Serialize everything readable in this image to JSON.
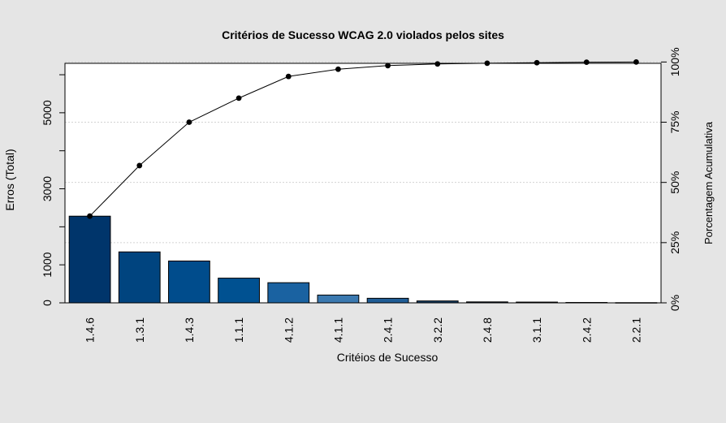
{
  "chart_data": {
    "type": "bar",
    "title": "Critérios de Sucesso WCAG 2.0 violados pelos sites",
    "xlabel": "Critéios de Sucesso",
    "ylabel": "Erros (Total)",
    "y2label": "Porcentagem Acumulativa",
    "categories": [
      "1.4.6",
      "1.3.1",
      "1.4.3",
      "1.1.1",
      "4.1.2",
      "4.1.1",
      "2.4.1",
      "3.2.2",
      "2.4.8",
      "3.1.1",
      "2.4.2",
      "2.2.1"
    ],
    "values": [
      2280,
      1340,
      1100,
      650,
      530,
      205,
      120,
      50,
      25,
      20,
      10,
      5
    ],
    "bar_colors": [
      "#00356b",
      "#00447f",
      "#004c8c",
      "#005191",
      "#1a62a1",
      "#3b79b0",
      "#1f5d96",
      "#163f66",
      "#10253d",
      "#0d1c2c",
      "#0b1623",
      "#0a0f17"
    ],
    "cumulative_percent": [
      36,
      57,
      75,
      85,
      94,
      97,
      98.5,
      99.2,
      99.5,
      99.7,
      99.9,
      100
    ],
    "ylim": [
      0,
      6300
    ],
    "y_ticks": [
      0,
      1000,
      3000,
      5000
    ],
    "y_minor_ticks": [
      2000,
      4000,
      6000
    ],
    "y2_ticks": [
      0,
      25,
      50,
      75,
      100
    ],
    "y2_tick_labels": [
      "0%",
      "25%",
      "50%",
      "75%",
      "100%"
    ],
    "gridlines": true,
    "grid_color": "#d3d3d3"
  }
}
